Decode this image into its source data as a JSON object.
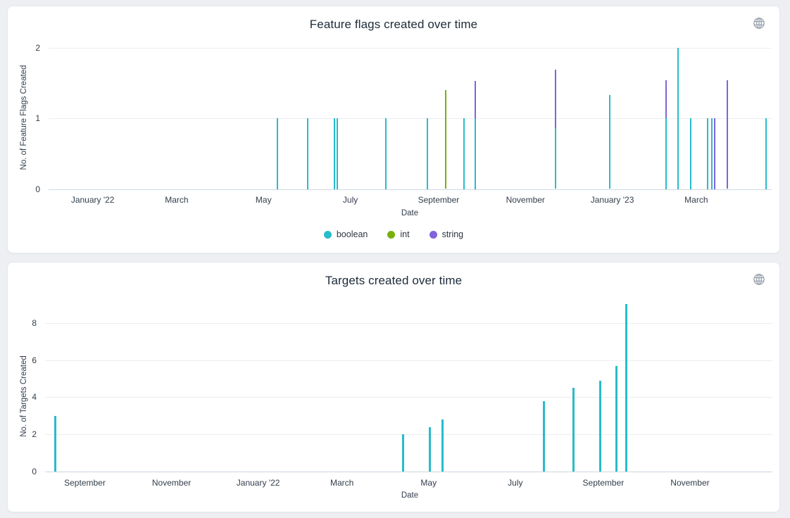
{
  "page": {
    "background": "#edeff2",
    "card_background": "#ffffff"
  },
  "colors": {
    "boolean": "#27bccb",
    "int": "#79b00e",
    "string": "#8263db",
    "axis_line": "#ccd7e2",
    "gridline": "#ebedef",
    "title_text": "#1c2b39",
    "tick_text": "#333d4a",
    "icon_gray": "#9aa2ae"
  },
  "chart_data": [
    {
      "type": "bar",
      "title": "Feature flags created over time",
      "xlabel": "Date",
      "ylabel": "No. of Feature Flags Created",
      "icon": "globe-icon",
      "grid": true,
      "legend_position": "bottom",
      "x_domain": [
        "2021-12-01",
        "2023-04-23"
      ],
      "ylim": [
        0,
        2
      ],
      "yticks": [
        0,
        1,
        2
      ],
      "x_ticks": [
        {
          "date": "2022-01-01",
          "label": "January '22"
        },
        {
          "date": "2022-03-01",
          "label": "March"
        },
        {
          "date": "2022-05-01",
          "label": "May"
        },
        {
          "date": "2022-07-01",
          "label": "July"
        },
        {
          "date": "2022-09-01",
          "label": "September"
        },
        {
          "date": "2022-11-01",
          "label": "November"
        },
        {
          "date": "2023-01-01",
          "label": "January '23"
        },
        {
          "date": "2023-03-01",
          "label": "March"
        }
      ],
      "legend": [
        {
          "name": "boolean",
          "color": "#27bccb"
        },
        {
          "name": "int",
          "color": "#79b00e"
        },
        {
          "name": "string",
          "color": "#8263db"
        }
      ],
      "series": [
        {
          "name": "string",
          "color": "#8263db",
          "points": [
            [
              "2022-09-27",
              1.53
            ],
            [
              "2022-11-22",
              1.69
            ],
            [
              "2023-02-08",
              1.54
            ],
            [
              "2023-03-14",
              1
            ],
            [
              "2023-03-23",
              1.54
            ]
          ]
        },
        {
          "name": "int",
          "color": "#79b00e",
          "points": [
            [
              "2022-09-06",
              1.4
            ]
          ]
        },
        {
          "name": "boolean",
          "color": "#27bccb",
          "points": [
            [
              "2022-05-11",
              1
            ],
            [
              "2022-06-01",
              1
            ],
            [
              "2022-06-20",
              1
            ],
            [
              "2022-06-22",
              1
            ],
            [
              "2022-07-26",
              1
            ],
            [
              "2022-08-24",
              1
            ],
            [
              "2022-09-19",
              1
            ],
            [
              "2022-09-27",
              1
            ],
            [
              "2022-11-22",
              0.86
            ],
            [
              "2022-12-30",
              1.33
            ],
            [
              "2023-02-08",
              1
            ],
            [
              "2023-02-16",
              2
            ],
            [
              "2023-02-25",
              1
            ],
            [
              "2023-03-09",
              1
            ],
            [
              "2023-03-12",
              1
            ],
            [
              "2023-04-19",
              1
            ]
          ]
        }
      ]
    },
    {
      "type": "bar",
      "title": "Targets created over time",
      "xlabel": "Date",
      "ylabel": "No. of Targets Created",
      "icon": "globe-icon",
      "grid": true,
      "legend_position": "none",
      "x_domain": [
        "2021-08-04",
        "2022-12-29"
      ],
      "ylim": [
        0,
        9
      ],
      "yticks": [
        0,
        2,
        4,
        6,
        8
      ],
      "x_ticks": [
        {
          "date": "2021-09-01",
          "label": "September"
        },
        {
          "date": "2021-11-01",
          "label": "November"
        },
        {
          "date": "2022-01-01",
          "label": "January '22"
        },
        {
          "date": "2022-03-01",
          "label": "March"
        },
        {
          "date": "2022-05-01",
          "label": "May"
        },
        {
          "date": "2022-07-01",
          "label": "July"
        },
        {
          "date": "2022-09-01",
          "label": "September"
        },
        {
          "date": "2022-11-01",
          "label": "November"
        }
      ],
      "legend": [],
      "series": [
        {
          "name": "targets",
          "color": "#27bccb",
          "points": [
            [
              "2021-08-11",
              3
            ],
            [
              "2022-04-13",
              2
            ],
            [
              "2022-05-02",
              2.4
            ],
            [
              "2022-05-11",
              2.8
            ],
            [
              "2022-07-21",
              3.8
            ],
            [
              "2022-08-11",
              4.5
            ],
            [
              "2022-08-30",
              4.9
            ],
            [
              "2022-09-10",
              5.7
            ],
            [
              "2022-09-17",
              9
            ]
          ]
        }
      ]
    }
  ]
}
